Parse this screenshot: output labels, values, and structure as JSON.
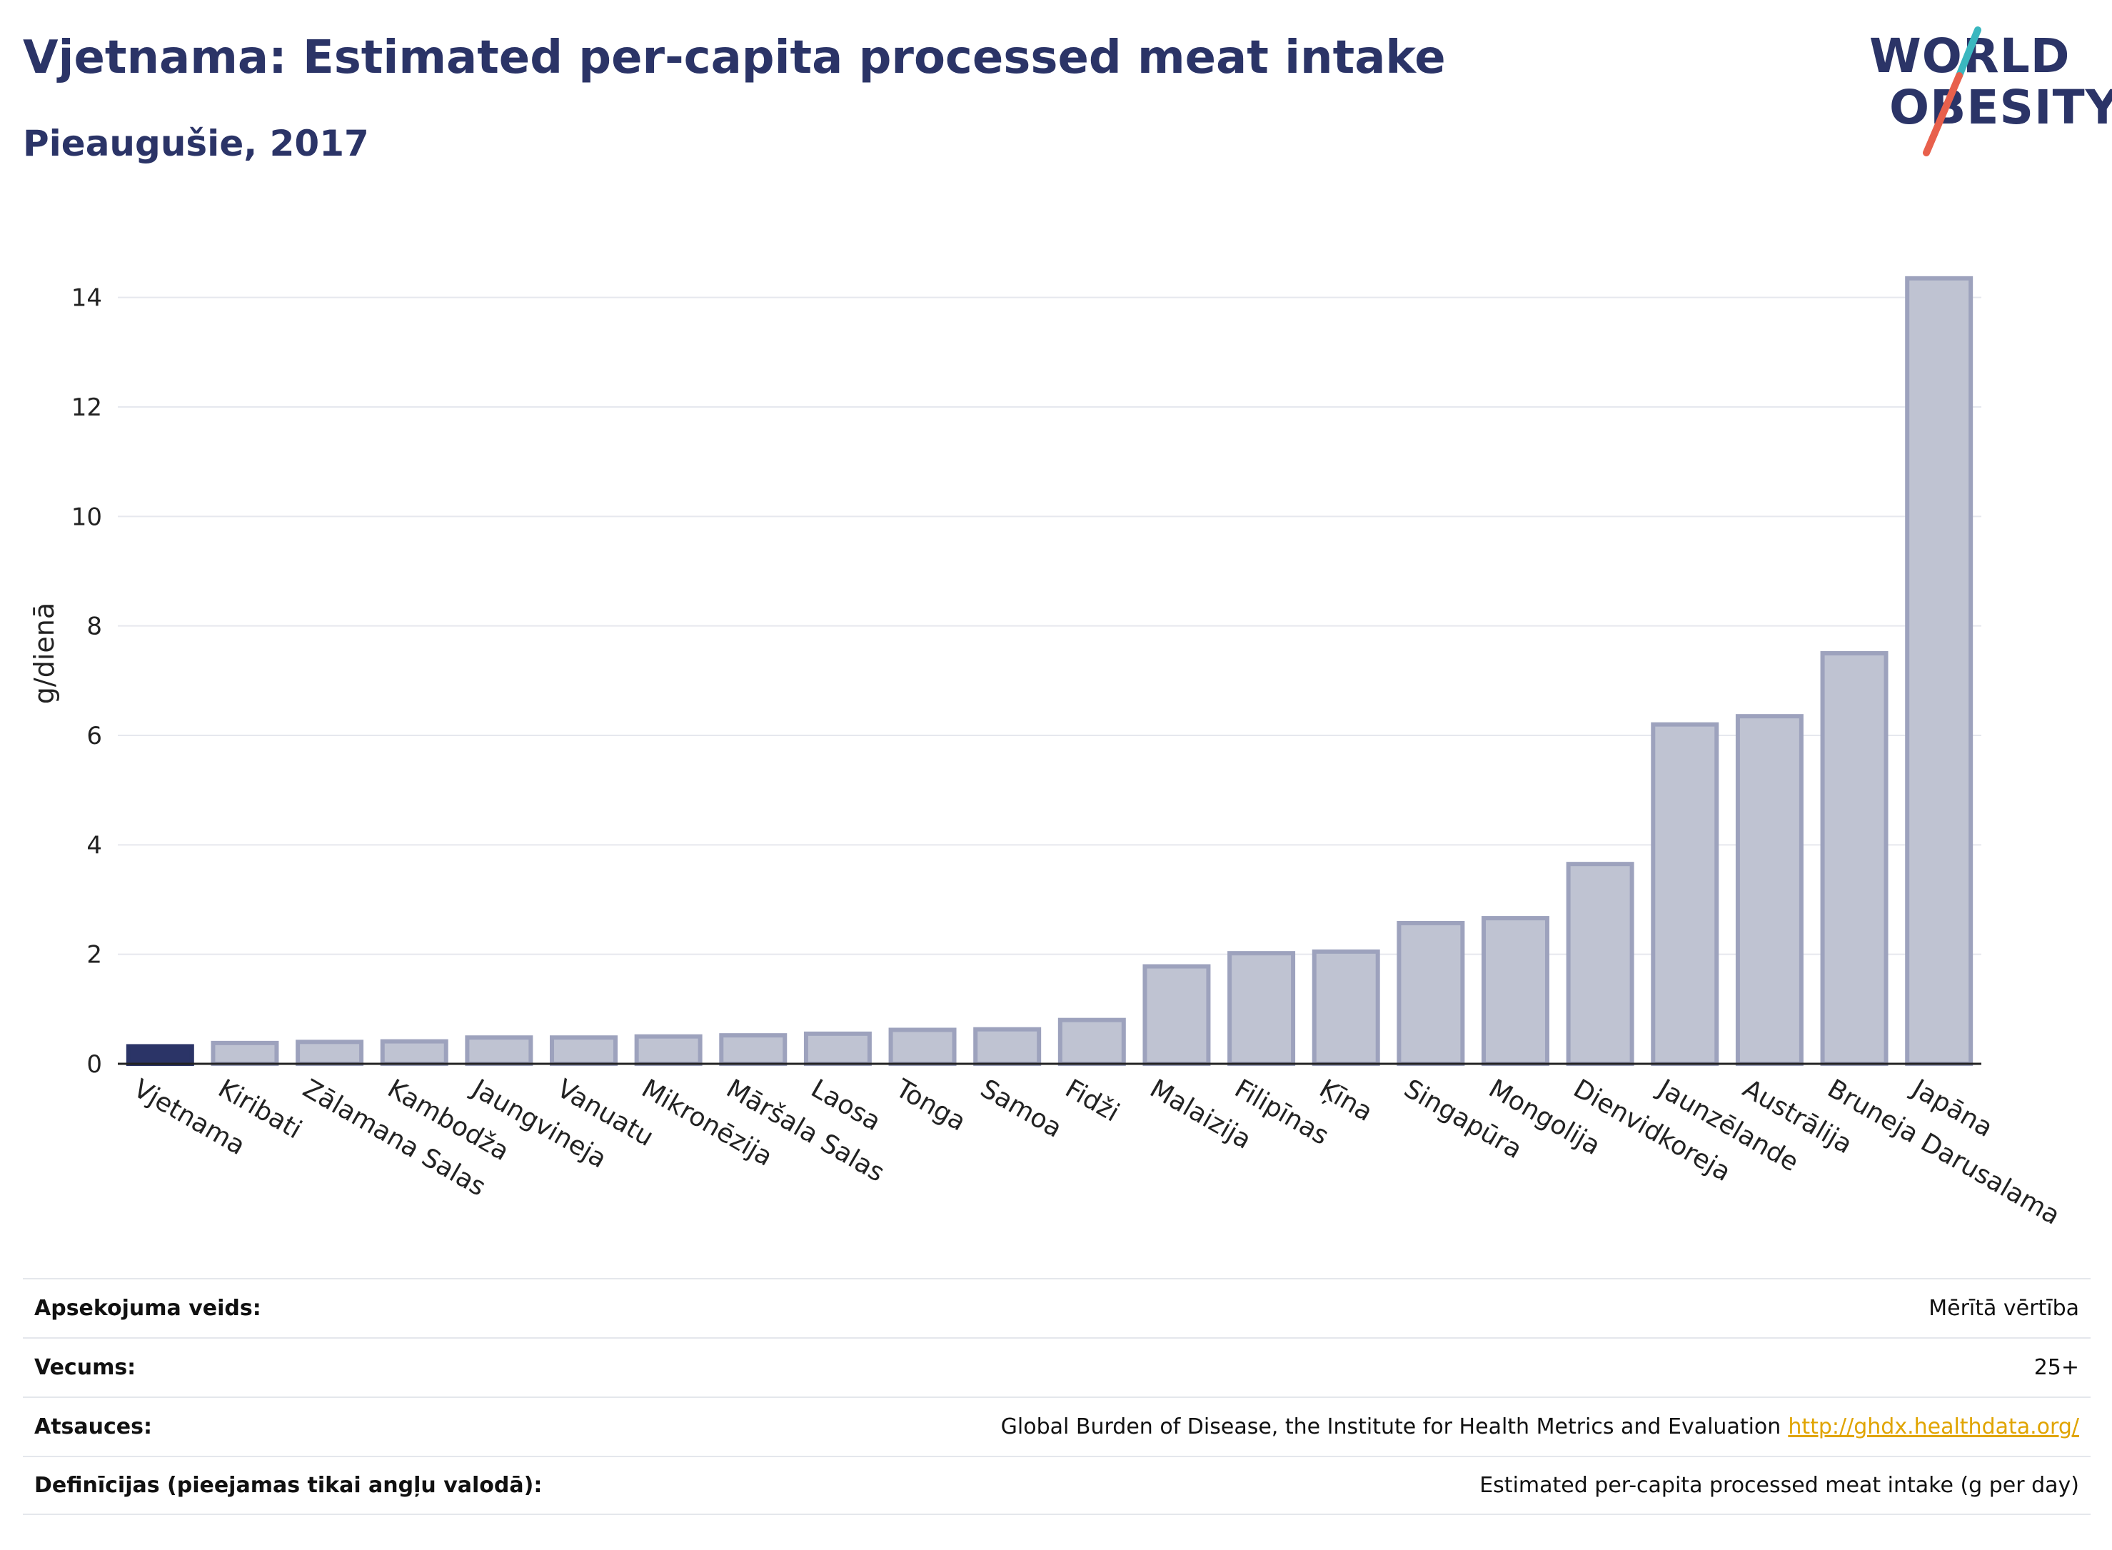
{
  "header": {
    "title": "Vjetnama: Estimated per-capita processed meat intake",
    "subtitle": "Pieaugušie, 2017"
  },
  "logo": {
    "line1": "WORLD",
    "line2": "OBESITY",
    "colors": {
      "text": "#2b3467",
      "slash_top": "#3ab7bf",
      "slash_bottom": "#e8604c"
    }
  },
  "chart_data": {
    "type": "bar",
    "title": "Vjetnama: Estimated per-capita processed meat intake",
    "subtitle": "Pieaugušie, 2017",
    "ylabel": "g/dienā",
    "xlabel": "",
    "ylim": [
      0,
      15
    ],
    "yticks": [
      0,
      2,
      4,
      6,
      8,
      10,
      12,
      14
    ],
    "grid": true,
    "categories": [
      "Vjetnama",
      "Kiribati",
      "Zālamana Salas",
      "Kambodža",
      "Jaungvineja",
      "Vanuatu",
      "Mikronēzija",
      "Māršala Salas",
      "Laosa",
      "Tonga",
      "Samoa",
      "Fidži",
      "Malaizija",
      "Filipīnas",
      "Ķīna",
      "Singapūra",
      "Mongolija",
      "Dienvidkoreja",
      "Jaunzēlande",
      "Austrālija",
      "Bruneja Darusalama",
      "Japāna"
    ],
    "values": [
      0.32,
      0.38,
      0.4,
      0.41,
      0.48,
      0.48,
      0.5,
      0.52,
      0.55,
      0.62,
      0.63,
      0.8,
      1.78,
      2.02,
      2.05,
      2.57,
      2.66,
      3.65,
      6.2,
      6.35,
      7.5,
      14.35
    ],
    "highlight_index": 0,
    "colors": {
      "highlight": "#2b3467",
      "bar_fill": "#bfc3d2",
      "bar_stroke": "#9da2bd",
      "grid": "#e6e8ee",
      "axis": "#222222"
    }
  },
  "meta": [
    {
      "label": "Apsekojuma veids:",
      "value": "Mērītā vērtība"
    },
    {
      "label": "Vecums:",
      "value": "25+"
    },
    {
      "label": "Atsauces:",
      "value": "Global Burden of Disease, the Institute for Health Metrics and Evaluation",
      "link": "http://ghdx.healthdata.org/"
    },
    {
      "label": "Definīcijas (pieejamas tikai angļu valodā):",
      "value": "Estimated per-capita processed meat intake (g per day)"
    }
  ]
}
